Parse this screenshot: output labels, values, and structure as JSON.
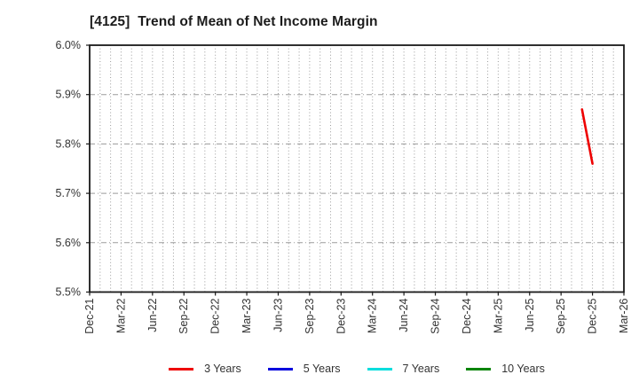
{
  "header": {
    "title": "[4125]  Trend of Mean of Net Income Margin"
  },
  "chart_data": {
    "type": "line",
    "title": "[4125]  Trend of Mean of Net Income Margin",
    "xlabel": "",
    "ylabel": "",
    "ylim": [
      5.5,
      6.0
    ],
    "yticks": [
      {
        "value": 5.5,
        "label": "5.5%"
      },
      {
        "value": 5.6,
        "label": "5.6%"
      },
      {
        "value": 5.7,
        "label": "5.7%"
      },
      {
        "value": 5.8,
        "label": "5.8%"
      },
      {
        "value": 5.9,
        "label": "5.9%"
      },
      {
        "value": 6.0,
        "label": "6.0%"
      }
    ],
    "x_axis": {
      "unit": "month",
      "start": "Dec-21",
      "end": "Mar-26",
      "total_months": 51
    },
    "xticks": [
      {
        "month": 0,
        "label": "Dec-21"
      },
      {
        "month": 3,
        "label": "Mar-22"
      },
      {
        "month": 6,
        "label": "Jun-22"
      },
      {
        "month": 9,
        "label": "Sep-22"
      },
      {
        "month": 12,
        "label": "Dec-22"
      },
      {
        "month": 15,
        "label": "Mar-23"
      },
      {
        "month": 18,
        "label": "Jun-23"
      },
      {
        "month": 21,
        "label": "Sep-23"
      },
      {
        "month": 24,
        "label": "Dec-23"
      },
      {
        "month": 27,
        "label": "Mar-24"
      },
      {
        "month": 30,
        "label": "Jun-24"
      },
      {
        "month": 33,
        "label": "Sep-24"
      },
      {
        "month": 36,
        "label": "Dec-24"
      },
      {
        "month": 39,
        "label": "Mar-25"
      },
      {
        "month": 42,
        "label": "Jun-25"
      },
      {
        "month": 45,
        "label": "Sep-25"
      },
      {
        "month": 48,
        "label": "Dec-25"
      },
      {
        "month": 51,
        "label": "Mar-26"
      }
    ],
    "grid": {
      "vertical": "dotted, one line per month",
      "horizontal": "dash-dot, one line per 0.1%"
    },
    "series": [
      {
        "name": "3 Years",
        "color": "#ee0000",
        "points": [
          {
            "x": "Nov-25",
            "month": 47,
            "value": 5.87
          },
          {
            "x": "Dec-25",
            "month": 48,
            "value": 5.76
          }
        ]
      },
      {
        "name": "5 Years",
        "color": "#0000dd",
        "points": []
      },
      {
        "name": "7 Years",
        "color": "#00dddd",
        "points": []
      },
      {
        "name": "10 Years",
        "color": "#0a840a",
        "points": []
      }
    ],
    "legend_position": "bottom"
  },
  "legend": {
    "items": [
      {
        "label": "3 Years",
        "color": "#ee0000"
      },
      {
        "label": "5 Years",
        "color": "#0000dd"
      },
      {
        "label": "7 Years",
        "color": "#00dddd"
      },
      {
        "label": "10 Years",
        "color": "#0a840a"
      }
    ]
  }
}
